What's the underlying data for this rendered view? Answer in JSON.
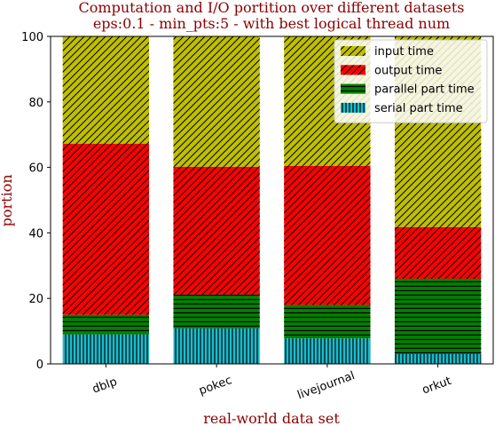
{
  "chart_data": {
    "type": "bar",
    "stacked": true,
    "title_line1": "Computation and I/O portition over different datasets",
    "title_line2": "eps:0.1 - min_pts:5 - with best logical thread num",
    "xlabel": "real-world data set",
    "ylabel": "portion",
    "ylim": [
      0,
      100
    ],
    "yticks": [
      "0",
      "20",
      "40",
      "60",
      "80",
      "100"
    ],
    "categories": [
      "dblp",
      "pokec",
      "livejournal",
      "orkut"
    ],
    "series": [
      {
        "name": "serial part time",
        "values": [
          9.0,
          10.8,
          7.8,
          3.0
        ],
        "color": "#17becf",
        "hatch": "vertical"
      },
      {
        "name": "parallel part time",
        "values": [
          6.0,
          10.4,
          10.2,
          23.0
        ],
        "color": "#008000",
        "hatch": "horizontal"
      },
      {
        "name": "output time",
        "values": [
          52.2,
          39.0,
          42.5,
          15.8
        ],
        "color": "#ff0000",
        "hatch": "diagonal"
      },
      {
        "name": "input time",
        "values": [
          32.8,
          39.8,
          39.5,
          58.2
        ],
        "color": "#bfbf00",
        "hatch": "diagonal"
      }
    ],
    "legend_order": [
      "input time",
      "output time",
      "parallel part time",
      "serial part time"
    ],
    "legend_position": "top-right",
    "grid": false
  }
}
